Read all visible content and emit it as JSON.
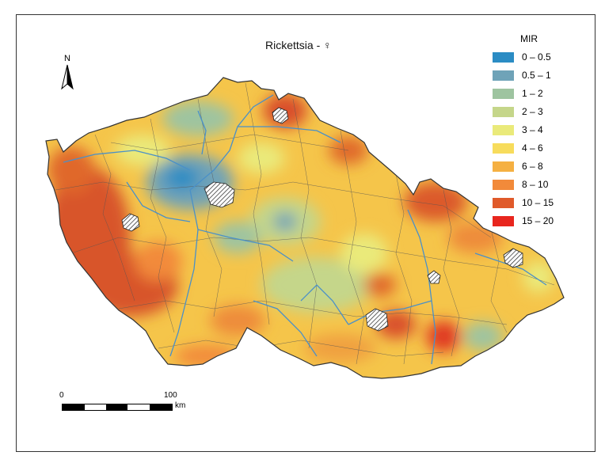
{
  "map": {
    "title": "Rickettsia - ♀",
    "north_label": "N",
    "legend": {
      "title": "MIR",
      "items": [
        {
          "label": "0 – 0.5",
          "color": "#2b8cc4"
        },
        {
          "label": "0.5 – 1",
          "color": "#6fa3b8"
        },
        {
          "label": "1 – 2",
          "color": "#9ec4a0"
        },
        {
          "label": "2 – 3",
          "color": "#c5d68a"
        },
        {
          "label": "3 – 4",
          "color": "#eaea7a"
        },
        {
          "label": "4 – 6",
          "color": "#f7dc5c"
        },
        {
          "label": "6 – 8",
          "color": "#f5b042"
        },
        {
          "label": "8 – 10",
          "color": "#f28a3a"
        },
        {
          "label": "10 – 15",
          "color": "#e05a2a"
        },
        {
          "label": "15 – 20",
          "color": "#e8261e"
        }
      ]
    },
    "scale_bar": {
      "start_label": "0",
      "end_label": "100",
      "unit_label": "km"
    },
    "colors": {
      "river": "#4a90c8",
      "boundary": "#555555",
      "frame": "#333333"
    }
  }
}
